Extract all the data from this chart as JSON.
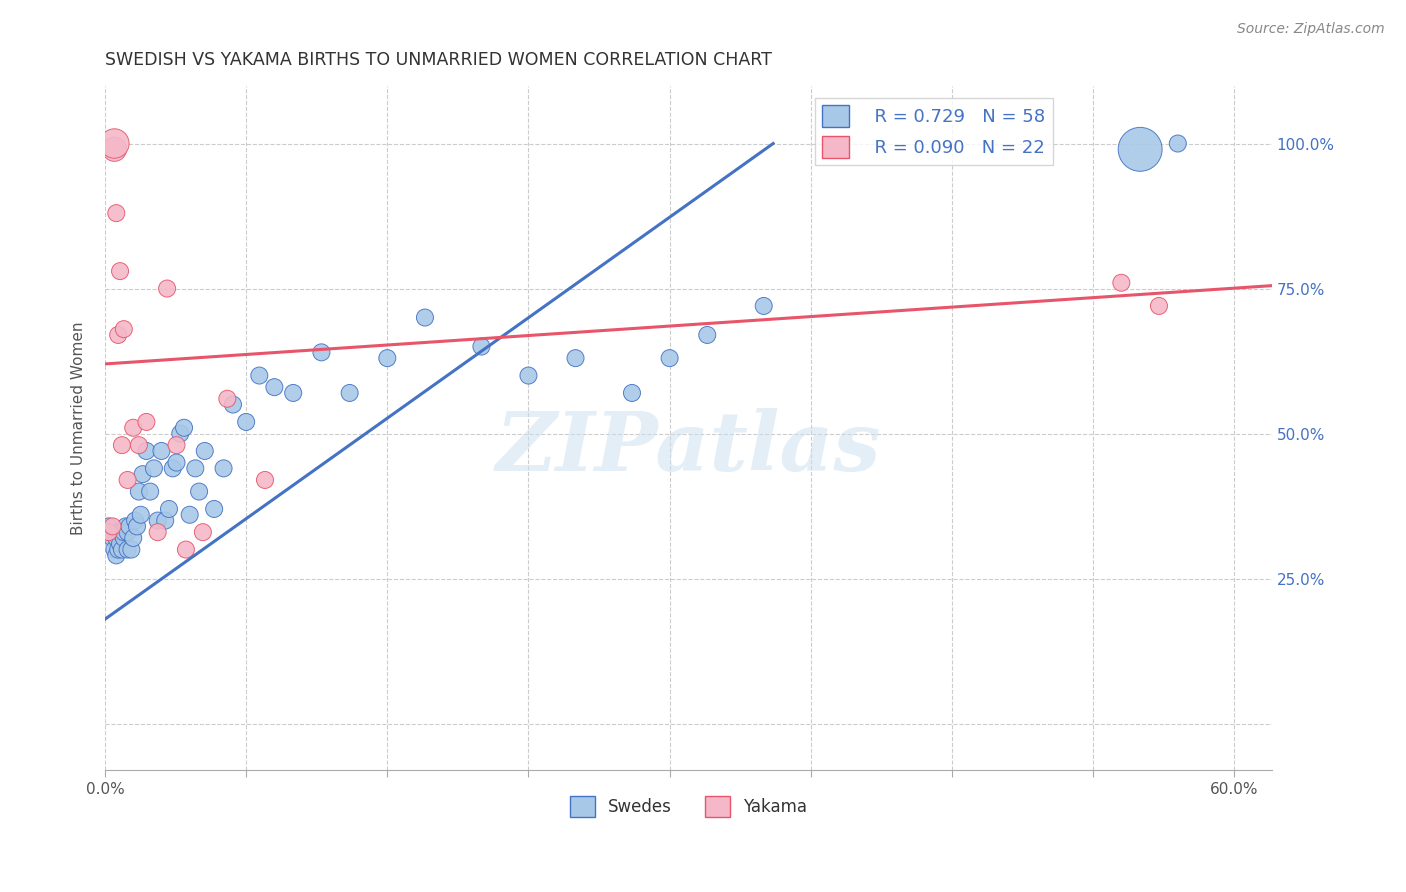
{
  "title": "SWEDISH VS YAKAMA BIRTHS TO UNMARRIED WOMEN CORRELATION CHART",
  "source": "Source: ZipAtlas.com",
  "ylabel": "Births to Unmarried Women",
  "ytick_vals": [
    0.0,
    0.25,
    0.5,
    0.75,
    1.0
  ],
  "ytick_labels": [
    "",
    "25.0%",
    "50.0%",
    "75.0%",
    "100.0%"
  ],
  "xtick_vals": [
    0.0,
    0.075,
    0.15,
    0.225,
    0.3,
    0.375,
    0.45,
    0.525,
    0.6
  ],
  "xlim": [
    0.0,
    0.62
  ],
  "ylim": [
    -0.08,
    1.1
  ],
  "swedes_R": 0.729,
  "swedes_N": 58,
  "yakama_R": 0.09,
  "yakama_N": 22,
  "swedes_color": "#a8c8e8",
  "yakama_color": "#f4b8c8",
  "trend_swedes_color": "#4472c4",
  "trend_yakama_color": "#e8556a",
  "swedes_line": [
    0.0,
    0.18,
    0.355,
    1.0
  ],
  "yakama_line_x": [
    0.0,
    0.62
  ],
  "yakama_line_y": [
    0.62,
    0.75
  ],
  "watermark_text": "ZIPatlas",
  "swedes_x": [
    0.002,
    0.004,
    0.005,
    0.006,
    0.006,
    0.007,
    0.007,
    0.008,
    0.008,
    0.009,
    0.01,
    0.01,
    0.011,
    0.012,
    0.012,
    0.013,
    0.014,
    0.015,
    0.016,
    0.017,
    0.018,
    0.019,
    0.02,
    0.022,
    0.024,
    0.026,
    0.028,
    0.03,
    0.032,
    0.034,
    0.036,
    0.038,
    0.04,
    0.042,
    0.045,
    0.048,
    0.05,
    0.053,
    0.058,
    0.063,
    0.068,
    0.075,
    0.082,
    0.09,
    0.1,
    0.115,
    0.13,
    0.15,
    0.17,
    0.2,
    0.225,
    0.25,
    0.28,
    0.3,
    0.32,
    0.35,
    0.55,
    0.57
  ],
  "swedes_y": [
    0.34,
    0.32,
    0.3,
    0.29,
    0.32,
    0.33,
    0.3,
    0.31,
    0.33,
    0.3,
    0.32,
    0.33,
    0.34,
    0.3,
    0.33,
    0.34,
    0.3,
    0.32,
    0.35,
    0.34,
    0.4,
    0.36,
    0.43,
    0.47,
    0.4,
    0.44,
    0.35,
    0.47,
    0.35,
    0.37,
    0.44,
    0.45,
    0.5,
    0.51,
    0.36,
    0.44,
    0.4,
    0.47,
    0.37,
    0.44,
    0.55,
    0.52,
    0.6,
    0.58,
    0.57,
    0.64,
    0.57,
    0.63,
    0.7,
    0.65,
    0.6,
    0.63,
    0.57,
    0.63,
    0.67,
    0.72,
    0.99,
    1.0
  ],
  "swedes_size": [
    30,
    30,
    30,
    30,
    30,
    30,
    30,
    30,
    30,
    30,
    30,
    30,
    30,
    30,
    30,
    30,
    30,
    30,
    30,
    30,
    30,
    30,
    30,
    30,
    30,
    30,
    30,
    30,
    30,
    30,
    30,
    30,
    30,
    30,
    30,
    30,
    30,
    30,
    30,
    30,
    30,
    30,
    30,
    30,
    30,
    30,
    30,
    30,
    30,
    30,
    30,
    30,
    30,
    30,
    30,
    30,
    200,
    30
  ],
  "yakama_x": [
    0.002,
    0.004,
    0.005,
    0.005,
    0.006,
    0.007,
    0.008,
    0.009,
    0.01,
    0.012,
    0.015,
    0.018,
    0.022,
    0.028,
    0.033,
    0.038,
    0.043,
    0.052,
    0.065,
    0.085,
    0.54,
    0.56
  ],
  "yakama_y": [
    0.33,
    0.34,
    0.99,
    1.0,
    0.88,
    0.67,
    0.78,
    0.48,
    0.68,
    0.42,
    0.51,
    0.48,
    0.52,
    0.33,
    0.75,
    0.48,
    0.3,
    0.33,
    0.56,
    0.42,
    0.76,
    0.72
  ],
  "yakama_size": [
    30,
    30,
    60,
    90,
    30,
    30,
    30,
    30,
    30,
    30,
    30,
    30,
    30,
    30,
    30,
    30,
    30,
    30,
    30,
    30,
    30,
    30
  ]
}
